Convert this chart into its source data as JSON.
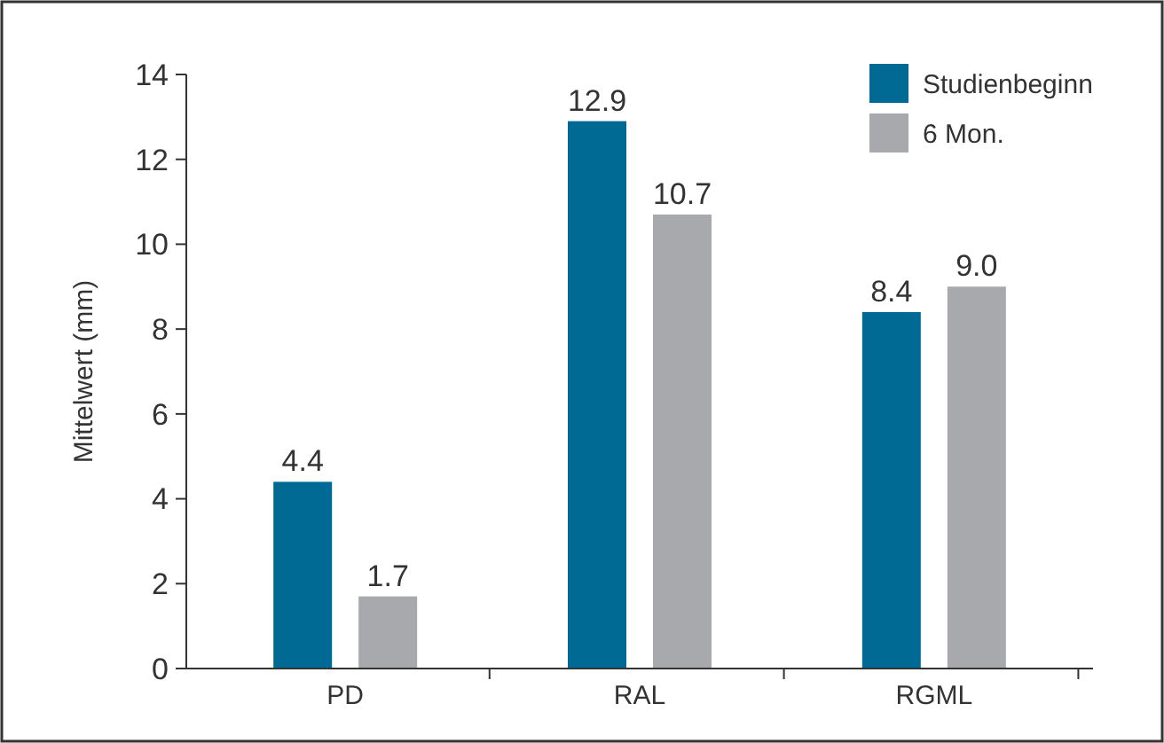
{
  "chart_data": {
    "type": "bar",
    "ylabel": "Mittelwert (mm)",
    "categories": [
      "PD",
      "RAL",
      "RGML"
    ],
    "series": [
      {
        "name": "Studienbeginn",
        "color": "#006a94",
        "values": [
          4.4,
          12.9,
          8.4
        ],
        "value_labels": [
          "4.4",
          "12.9",
          "8.4"
        ]
      },
      {
        "name": "6 Mon.",
        "color": "#a7a9ac",
        "values": [
          1.7,
          10.7,
          9.0
        ],
        "value_labels": [
          "1.7",
          "10.7",
          "9.0"
        ]
      }
    ],
    "ylim": [
      0,
      14
    ],
    "yticks": [
      0,
      2,
      4,
      6,
      8,
      10,
      12,
      14
    ],
    "legend": "top right",
    "grid": false
  }
}
